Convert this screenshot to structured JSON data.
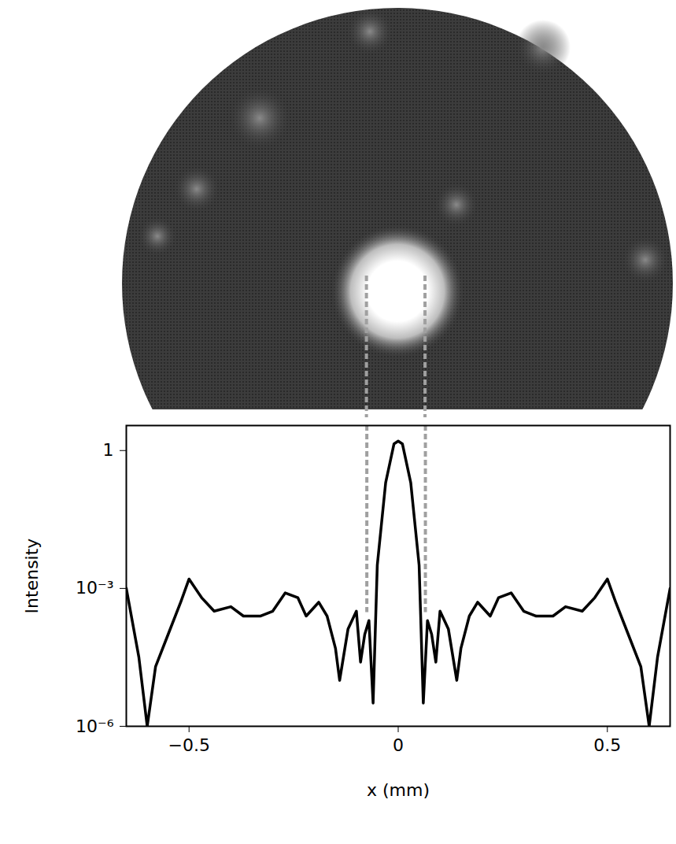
{
  "chart_data": {
    "type": "line",
    "xlabel": "x (mm)",
    "ylabel": "Intensity",
    "log": "y",
    "color": "#000000",
    "xlim": [
      -0.65,
      0.65
    ],
    "ylim": [
      1e-06,
      3.5
    ],
    "xticks": [
      {
        "value": -0.5,
        "label": "−0.5"
      },
      0,
      0.5
    ],
    "yticks": [
      {
        "value": 1e-06,
        "label": "10⁻⁶"
      },
      {
        "value": 0.001,
        "label": "10⁻³"
      },
      1
    ],
    "x": [
      -0.65,
      -0.62,
      -0.6,
      -0.58,
      -0.55,
      -0.52,
      -0.5,
      -0.47,
      -0.44,
      -0.4,
      -0.37,
      -0.33,
      -0.3,
      -0.27,
      -0.24,
      -0.22,
      -0.19,
      -0.17,
      -0.15,
      -0.14,
      -0.12,
      -0.1,
      -0.09,
      -0.08,
      -0.07,
      -0.06,
      -0.05,
      -0.03,
      -0.01,
      0,
      0.01,
      0.03,
      0.05,
      0.06,
      0.07,
      0.08,
      0.09,
      0.1,
      0.12,
      0.14,
      0.15,
      0.17,
      0.19,
      0.22,
      0.24,
      0.27,
      0.3,
      0.33,
      0.37,
      0.4,
      0.44,
      0.47,
      0.5,
      0.52,
      0.55,
      0.58,
      0.6,
      0.62,
      0.65
    ],
    "values": [
      0.001,
      3.2e-05,
      1e-06,
      2e-05,
      0.0001,
      0.0005,
      0.0016,
      0.00063,
      0.00032,
      0.0004,
      0.00025,
      0.00025,
      0.00032,
      0.0008,
      0.00063,
      0.00025,
      0.0005,
      0.00025,
      5e-05,
      1e-05,
      0.00013,
      0.00032,
      2.5e-05,
      0.0001,
      0.0002,
      3.2e-06,
      0.0032,
      0.2,
      1.4,
      1.6,
      1.4,
      0.2,
      0.0032,
      3.2e-06,
      0.0002,
      0.0001,
      2.5e-05,
      0.00032,
      0.00013,
      1e-05,
      5e-05,
      0.00025,
      0.0005,
      0.00025,
      0.00063,
      0.0008,
      0.00032,
      0.00025,
      0.00025,
      0.0004,
      0.00032,
      0.00063,
      0.0016,
      0.0005,
      0.0001,
      2e-05,
      1e-06,
      3.2e-05,
      0.001
    ],
    "guide_lines": [
      {
        "x": -0.075,
        "y": 0.0003
      },
      {
        "x": 0.065,
        "y": 0.0003
      }
    ]
  }
}
